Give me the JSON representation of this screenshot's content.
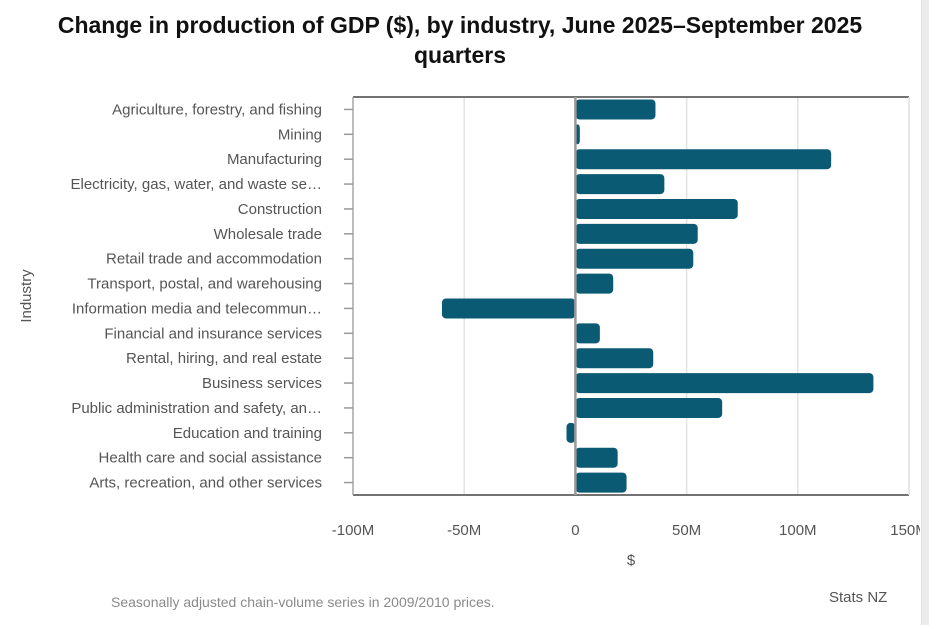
{
  "chart_data": {
    "type": "bar",
    "orientation": "horizontal",
    "title": "Change in production of GDP ($), by industry, June 2025–September 2025 quarters",
    "xlabel": "$",
    "ylabel": "Industry",
    "xlim": [
      -100,
      150
    ],
    "x_unit": "M",
    "x_ticks": [
      -100,
      -50,
      0,
      50,
      100,
      150
    ],
    "x_tick_labels": [
      "-100M",
      "-50M",
      "0",
      "50M",
      "100M",
      "150M"
    ],
    "grid": true,
    "legend": "none",
    "bar_color": "#0b5a73",
    "categories": [
      "Agriculture, forestry, and fishing",
      "Mining",
      "Manufacturing",
      "Electricity, gas, water, and waste se…",
      "Construction",
      "Wholesale trade",
      "Retail trade and accommodation",
      "Transport, postal, and warehousing",
      "Information media and telecommun…",
      "Financial and insurance services",
      "Rental, hiring, and real estate",
      "Business services",
      "Public administration and safety, an…",
      "Education and training",
      "Health care and social assistance",
      "Arts, recreation, and other services"
    ],
    "values": [
      36,
      2,
      115,
      40,
      73,
      55,
      53,
      17,
      -60,
      11,
      35,
      134,
      66,
      -4,
      19,
      23
    ]
  },
  "footer": {
    "note": "Seasonally adjusted chain-volume series in 2009/2010 prices.",
    "source": "Stats NZ"
  }
}
